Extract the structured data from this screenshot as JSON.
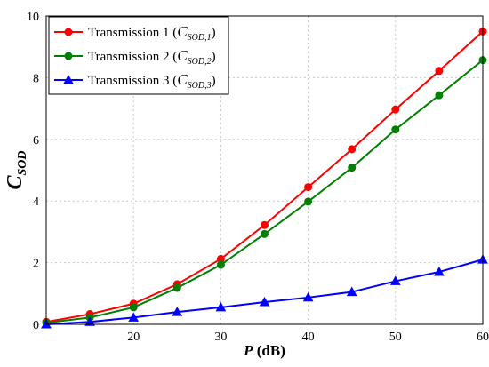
{
  "chart_data": {
    "type": "line",
    "title": "",
    "xlabel": "P (dB)",
    "xlabel_main": "P",
    "xlabel_unit": " (dB)",
    "ylabel": "C_SOD",
    "ylabel_main": "C",
    "ylabel_sub": "SOD",
    "xlim": [
      10,
      60
    ],
    "ylim": [
      0,
      10
    ],
    "xticks": [
      20,
      30,
      40,
      50,
      60
    ],
    "yticks": [
      0,
      2,
      4,
      6,
      8,
      10
    ],
    "grid": true,
    "legend_position": "top-left",
    "x": [
      10,
      15,
      20,
      25,
      30,
      35,
      40,
      45,
      50,
      55,
      60
    ],
    "series": [
      {
        "name": "Transmission 1 (C_SOD,1)",
        "legend_main": "Transmission 1 (",
        "legend_sym": "C",
        "legend_sub": "SOD,1",
        "legend_close": ")",
        "color": "#ff0000",
        "marker": "circle",
        "values": [
          0.08,
          0.33,
          0.67,
          1.3,
          2.12,
          3.22,
          4.45,
          5.68,
          6.97,
          8.22,
          9.5
        ]
      },
      {
        "name": "Transmission 2 (C_SOD,2)",
        "legend_main": "Transmission 2 (",
        "legend_sym": "C",
        "legend_sub": "SOD,2",
        "legend_close": ")",
        "color": "#008000",
        "marker": "circle",
        "values": [
          0.05,
          0.22,
          0.55,
          1.18,
          1.93,
          2.93,
          3.98,
          5.08,
          6.32,
          7.43,
          8.57
        ]
      },
      {
        "name": "Transmission 3 (C_SOD,3)",
        "legend_main": "Transmission 3 (",
        "legend_sym": "C",
        "legend_sub": "SOD,3",
        "legend_close": ")",
        "color": "#0000ff",
        "marker": "triangle",
        "values": [
          0.0,
          0.08,
          0.22,
          0.4,
          0.55,
          0.72,
          0.87,
          1.05,
          1.4,
          1.7,
          2.1
        ]
      }
    ]
  }
}
